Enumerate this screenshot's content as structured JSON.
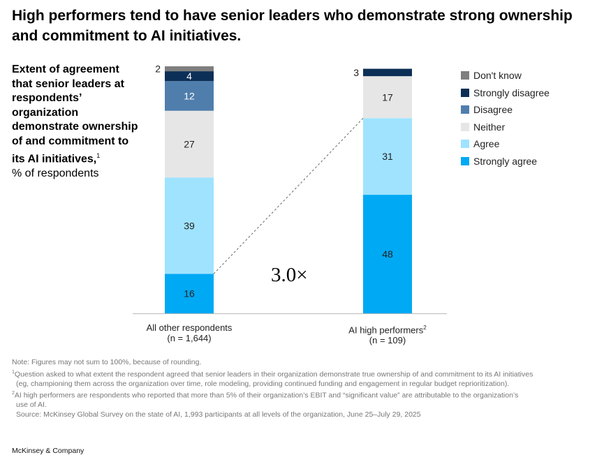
{
  "title": "High performers tend to have senior leaders who demonstrate strong ownership and commitment to AI initiatives.",
  "side_label": {
    "bold": "Extent of agreement that senior leaders at respondents’ organization demonstrate ownership of and commitment to its AI initiatives,",
    "sup": "1",
    "unit": "% of respondents"
  },
  "multiplier": "3.0×",
  "chart_data": {
    "type": "bar",
    "stacked": true,
    "categories": [
      "All other respondents",
      "AI high performers"
    ],
    "category_sub": [
      "(n = 1,644)",
      "(n = 109)"
    ],
    "category_sup": [
      "",
      "2"
    ],
    "series": [
      {
        "name": "Strongly agree",
        "color": "#00a9f4",
        "values": [
          16,
          48
        ]
      },
      {
        "name": "Agree",
        "color": "#9fe3ff",
        "values": [
          39,
          31
        ]
      },
      {
        "name": "Neither",
        "color": "#e6e6e6",
        "values": [
          27,
          17
        ]
      },
      {
        "name": "Disagree",
        "color": "#4f7ead",
        "values": [
          12,
          0
        ]
      },
      {
        "name": "Strongly disagree",
        "color": "#0c2f57",
        "values": [
          4,
          3
        ]
      },
      {
        "name": "Don't know",
        "color": "#7f7f7f",
        "values": [
          2,
          0
        ]
      }
    ],
    "ylim": [
      0,
      100
    ],
    "legend_position": "right"
  },
  "notes": {
    "note": "Note: Figures may not sum to 100%, because of rounding.",
    "fn1_sup": "1",
    "fn1a": "Question asked to what extent the respondent agreed that senior leaders in their organization demonstrate true ownership of and commitment to its AI initiatives",
    "fn1b": "(eg, championing them across the organization over time, role modeling, providing continued funding and engagement in regular budget reprioritization).",
    "fn2_sup": "2",
    "fn2a": "AI high performers are respondents who reported that more than 5% of their organization’s EBIT and “significant value” are attributable to the organization’s",
    "fn2b": "use of AI.",
    "source": "Source: McKinsey Global Survey on the state of AI, 1,993 participants at all levels of the organization, June 25–July 29, 2025"
  },
  "brand": "McKinsey & Company"
}
